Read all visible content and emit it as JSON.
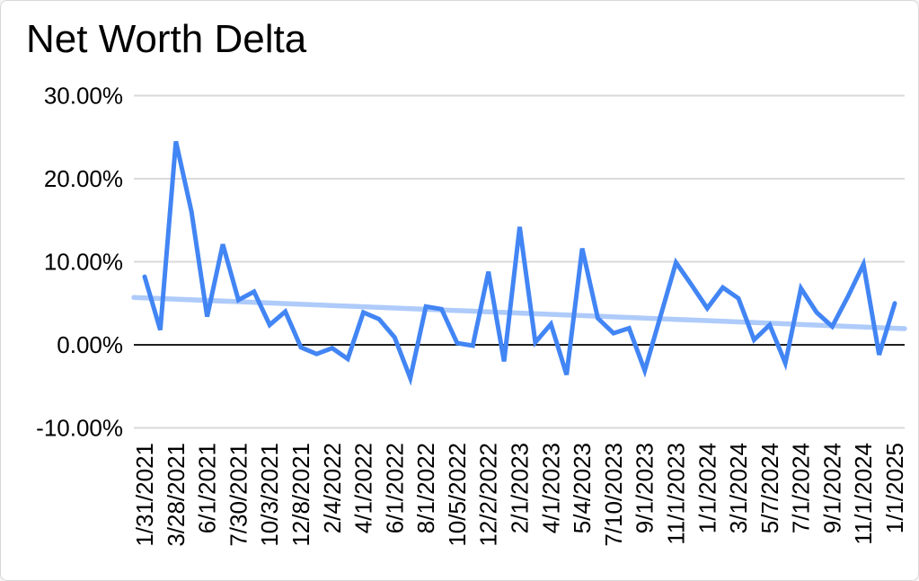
{
  "chart_data": {
    "type": "line",
    "title": "Net Worth Delta",
    "series": [
      {
        "name": "Net Worth Delta",
        "color": "#4285f4",
        "unit": "%",
        "values": [
          8.2,
          1.8,
          24.5,
          16.0,
          3.4,
          12.1,
          5.4,
          6.4,
          2.4,
          4.0,
          -0.3,
          -1.1,
          -0.4,
          -1.7,
          3.9,
          3.1,
          0.9,
          -4.0,
          4.6,
          4.3,
          0.2,
          -0.1,
          8.8,
          -2.0,
          14.2,
          0.3,
          2.5,
          -3.6,
          11.6,
          3.2,
          1.4,
          2.0,
          -3.1,
          3.4,
          9.9,
          7.2,
          4.4,
          6.9,
          5.6,
          0.6,
          2.4,
          -2.2,
          6.8,
          3.9,
          2.2,
          5.8,
          9.7,
          -1.2,
          5.0
        ]
      }
    ],
    "trendline": {
      "color": "#aecbfa",
      "start_value": 5.7,
      "end_value": 1.95
    },
    "x_labels": [
      "1/31/2021",
      "3/28/2021",
      "6/1/2021",
      "7/30/2021",
      "10/3/2021",
      "12/8/2021",
      "2/4/2022",
      "4/1/2022",
      "6/1/2022",
      "8/1/2022",
      "10/5/2022",
      "12/2/2022",
      "2/1/2023",
      "4/1/2023",
      "5/4/2023",
      "7/10/2023",
      "9/1/2023",
      "11/1/2023",
      "1/1/2024",
      "3/1/2024",
      "5/7/2024",
      "7/1/2024",
      "9/1/2024",
      "11/1/2024",
      "1/1/2025"
    ],
    "x_label_every_n_points": 2,
    "y_axis": {
      "ticks": [
        {
          "label": "30.00%",
          "value": 30
        },
        {
          "label": "20.00%",
          "value": 20
        },
        {
          "label": "10.00%",
          "value": 10
        },
        {
          "label": "0.00%",
          "value": 0
        },
        {
          "label": "-10.00%",
          "value": -10
        }
      ],
      "range": [
        -10,
        30
      ],
      "format": "percent"
    },
    "grid": true,
    "legend_position": "none",
    "colors": {
      "grid": "#dadada",
      "zero_line": "#1f1f1f",
      "tick_label": "#000000",
      "title": "#7d7d7d",
      "background": "#ffffff",
      "border": "#d8d8d8"
    }
  }
}
